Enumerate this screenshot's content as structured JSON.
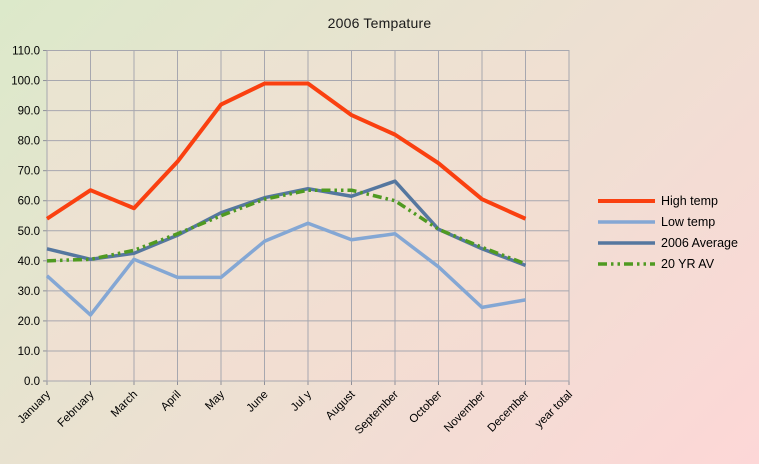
{
  "chart_data": {
    "type": "line",
    "title": "2006 Tempature",
    "categories": [
      "January",
      "February",
      "March",
      "April",
      "May",
      "June",
      "Jul y",
      "August",
      "September",
      "October",
      "November",
      "December",
      "year total"
    ],
    "series": [
      {
        "name": "High temp",
        "color": "#fa4010",
        "stroke_width": 4,
        "dash": "",
        "values": [
          54,
          63.5,
          57.5,
          73,
          92,
          99,
          99,
          88.5,
          82,
          72.5,
          60.5,
          54
        ]
      },
      {
        "name": "Low temp",
        "color": "#84a7d4",
        "stroke_width": 3.5,
        "dash": "",
        "values": [
          35,
          22,
          40.5,
          34.5,
          34.5,
          46.5,
          52.5,
          47,
          49,
          38,
          24.5,
          27
        ]
      },
      {
        "name": "2006 Average",
        "color": "#55779f",
        "stroke_width": 3.5,
        "dash": "",
        "values": [
          44,
          40.5,
          42.5,
          48.5,
          56,
          61,
          64,
          61.5,
          66.5,
          50.5,
          44,
          38.5
        ]
      },
      {
        "name": "20 YR AV",
        "color": "#4f9a21",
        "stroke_width": 3.5,
        "dash": "9 4 2.5 4 2.5 4",
        "values": [
          40,
          40.5,
          43.5,
          49,
          55,
          60.5,
          63.5,
          63.5,
          60,
          50.5,
          44.5,
          39
        ]
      }
    ],
    "ylim": [
      0,
      110
    ],
    "ytick_step": 10,
    "ytick_decimals": 1,
    "grid": true,
    "legend_position": "right"
  },
  "colors": {
    "page_gradient_start": "#dce9ca",
    "page_gradient_mid": "#ede0d2",
    "page_gradient_end": "#fdd7d7",
    "plot_gradient_start": "#e9e5d1",
    "plot_gradient_end": "#f6dbd3",
    "gridline": "#a7a7af",
    "axis_text": "#000000"
  }
}
